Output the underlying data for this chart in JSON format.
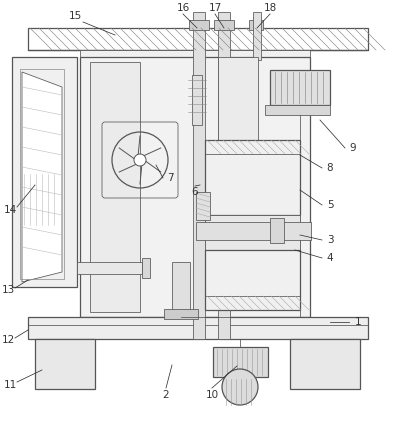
{
  "bg_color": "#ffffff",
  "line_color": "#555555",
  "label_color": "#333333",
  "label_fs": 7.5,
  "lw_main": 0.9,
  "lw_thin": 0.55,
  "lw_label": 0.55
}
